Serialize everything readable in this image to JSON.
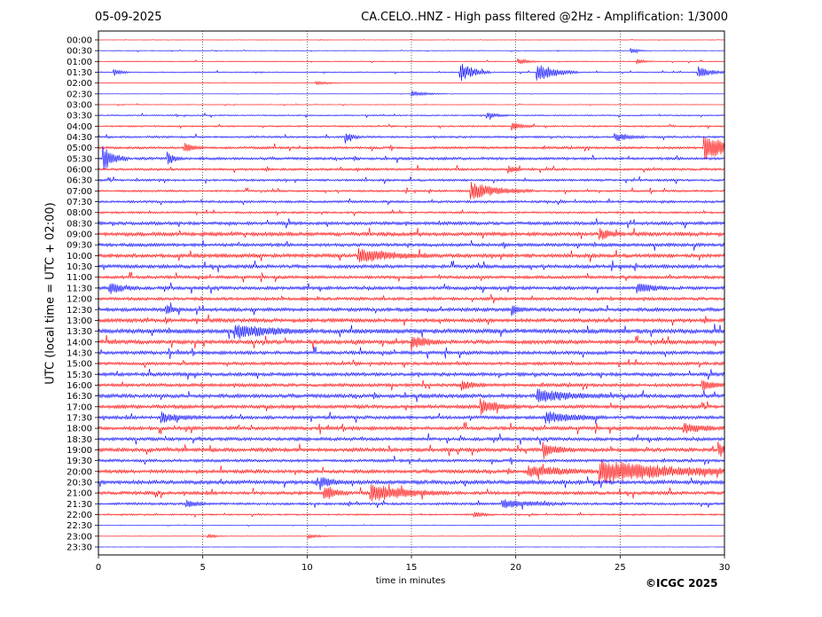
{
  "header": {
    "date": "05-09-2025",
    "title": "CA.CELO..HNZ - High pass filtered @2Hz - Amplification: 1/3000"
  },
  "footer": {
    "copyright": "©ICGC 2025"
  },
  "chart_data": {
    "type": "line",
    "title": "CA.CELO..HNZ - High pass filtered @2Hz - Amplification: 1/3000",
    "xlabel": "time in minutes",
    "ylabel": "UTC (local time = UTC + 02:00)",
    "xlim": [
      0,
      30
    ],
    "xticks": [
      0,
      5,
      10,
      15,
      20,
      25,
      30
    ],
    "grid": "vertical dotted lines at 5-minute intervals",
    "trace_colors": [
      "#ff0000",
      "#0000ff"
    ],
    "rows": [
      "00:00",
      "00:30",
      "01:00",
      "01:30",
      "02:00",
      "02:30",
      "03:00",
      "03:30",
      "04:00",
      "04:30",
      "05:00",
      "05:30",
      "06:00",
      "06:30",
      "07:00",
      "07:30",
      "08:00",
      "08:30",
      "09:00",
      "09:30",
      "10:00",
      "10:30",
      "11:00",
      "11:30",
      "12:00",
      "12:30",
      "13:00",
      "13:30",
      "14:00",
      "14:30",
      "15:00",
      "15:30",
      "16:00",
      "16:30",
      "17:00",
      "17:30",
      "18:00",
      "18:30",
      "19:00",
      "19:30",
      "20:00",
      "20:30",
      "21:00",
      "21:30",
      "22:00",
      "22:30",
      "23:00",
      "23:30"
    ],
    "noise_level": [
      0.03,
      0.06,
      0.08,
      0.1,
      0.04,
      0.03,
      0.05,
      0.12,
      0.14,
      0.18,
      0.22,
      0.24,
      0.22,
      0.2,
      0.18,
      0.22,
      0.18,
      0.3,
      0.34,
      0.3,
      0.34,
      0.32,
      0.28,
      0.3,
      0.28,
      0.32,
      0.34,
      0.4,
      0.36,
      0.32,
      0.28,
      0.32,
      0.3,
      0.34,
      0.32,
      0.3,
      0.32,
      0.3,
      0.34,
      0.26,
      0.32,
      0.36,
      0.3,
      0.22,
      0.14,
      0.05,
      0.03,
      0.02
    ],
    "events": [
      {
        "row": "00:30",
        "t": 25.5,
        "amp": 0.6,
        "dur": 0.3
      },
      {
        "row": "01:00",
        "t": 20.1,
        "amp": 0.8,
        "dur": 0.4
      },
      {
        "row": "01:00",
        "t": 25.8,
        "amp": 0.6,
        "dur": 0.3
      },
      {
        "row": "01:30",
        "t": 0.7,
        "amp": 0.9,
        "dur": 0.3
      },
      {
        "row": "01:30",
        "t": 17.3,
        "amp": 2.2,
        "dur": 0.6
      },
      {
        "row": "01:30",
        "t": 21.0,
        "amp": 2.0,
        "dur": 0.8
      },
      {
        "row": "01:30",
        "t": 28.7,
        "amp": 1.2,
        "dur": 0.6
      },
      {
        "row": "02:00",
        "t": 10.4,
        "amp": 0.5,
        "dur": 0.5
      },
      {
        "row": "02:30",
        "t": 15.0,
        "amp": 0.6,
        "dur": 0.7
      },
      {
        "row": "03:30",
        "t": 18.6,
        "amp": 0.7,
        "dur": 0.4
      },
      {
        "row": "04:00",
        "t": 19.8,
        "amp": 1.0,
        "dur": 0.4
      },
      {
        "row": "04:30",
        "t": 11.8,
        "amp": 1.2,
        "dur": 0.3
      },
      {
        "row": "04:30",
        "t": 24.7,
        "amp": 1.0,
        "dur": 0.6
      },
      {
        "row": "05:00",
        "t": 4.1,
        "amp": 1.0,
        "dur": 0.4
      },
      {
        "row": "05:00",
        "t": 29.0,
        "amp": 2.4,
        "dur": 1.8
      },
      {
        "row": "05:30",
        "t": 0.2,
        "amp": 2.5,
        "dur": 0.5
      },
      {
        "row": "05:30",
        "t": 3.3,
        "amp": 1.6,
        "dur": 0.3
      },
      {
        "row": "06:00",
        "t": 19.6,
        "amp": 1.0,
        "dur": 0.3
      },
      {
        "row": "07:00",
        "t": 17.8,
        "amp": 1.8,
        "dur": 1.2
      },
      {
        "row": "09:00",
        "t": 24.0,
        "amp": 1.0,
        "dur": 0.5
      },
      {
        "row": "10:00",
        "t": 12.4,
        "amp": 1.4,
        "dur": 1.5
      },
      {
        "row": "11:30",
        "t": 0.5,
        "amp": 1.2,
        "dur": 0.6
      },
      {
        "row": "11:30",
        "t": 25.8,
        "amp": 1.1,
        "dur": 0.6
      },
      {
        "row": "12:30",
        "t": 3.2,
        "amp": 1.0,
        "dur": 0.3
      },
      {
        "row": "12:30",
        "t": 19.8,
        "amp": 1.2,
        "dur": 0.3
      },
      {
        "row": "13:30",
        "t": 6.5,
        "amp": 1.3,
        "dur": 1.5
      },
      {
        "row": "14:00",
        "t": 15.0,
        "amp": 1.4,
        "dur": 0.6
      },
      {
        "row": "16:00",
        "t": 17.4,
        "amp": 1.0,
        "dur": 0.5
      },
      {
        "row": "16:00",
        "t": 28.9,
        "amp": 1.0,
        "dur": 0.6
      },
      {
        "row": "16:30",
        "t": 21.0,
        "amp": 1.2,
        "dur": 1.5
      },
      {
        "row": "17:00",
        "t": 18.3,
        "amp": 1.4,
        "dur": 0.8
      },
      {
        "row": "17:30",
        "t": 3.0,
        "amp": 1.0,
        "dur": 0.8
      },
      {
        "row": "17:30",
        "t": 21.4,
        "amp": 1.2,
        "dur": 1.2
      },
      {
        "row": "18:00",
        "t": 28.0,
        "amp": 1.1,
        "dur": 0.8
      },
      {
        "row": "19:00",
        "t": 21.3,
        "amp": 1.4,
        "dur": 0.6
      },
      {
        "row": "19:00",
        "t": 29.7,
        "amp": 1.6,
        "dur": 0.4
      },
      {
        "row": "20:00",
        "t": 24.0,
        "amp": 2.2,
        "dur": 3.5
      },
      {
        "row": "20:00",
        "t": 20.6,
        "amp": 1.1,
        "dur": 1.5
      },
      {
        "row": "20:30",
        "t": 10.6,
        "amp": 1.5,
        "dur": 0.4
      },
      {
        "row": "21:00",
        "t": 10.8,
        "amp": 1.6,
        "dur": 0.5
      },
      {
        "row": "21:00",
        "t": 13.0,
        "amp": 1.8,
        "dur": 1.5
      },
      {
        "row": "21:30",
        "t": 4.2,
        "amp": 1.0,
        "dur": 0.4
      },
      {
        "row": "21:30",
        "t": 19.3,
        "amp": 1.0,
        "dur": 1.2
      },
      {
        "row": "22:00",
        "t": 18.0,
        "amp": 0.6,
        "dur": 0.4
      },
      {
        "row": "23:00",
        "t": 5.2,
        "amp": 0.6,
        "dur": 0.4
      },
      {
        "row": "23:00",
        "t": 10.0,
        "amp": 0.5,
        "dur": 0.6
      }
    ]
  }
}
